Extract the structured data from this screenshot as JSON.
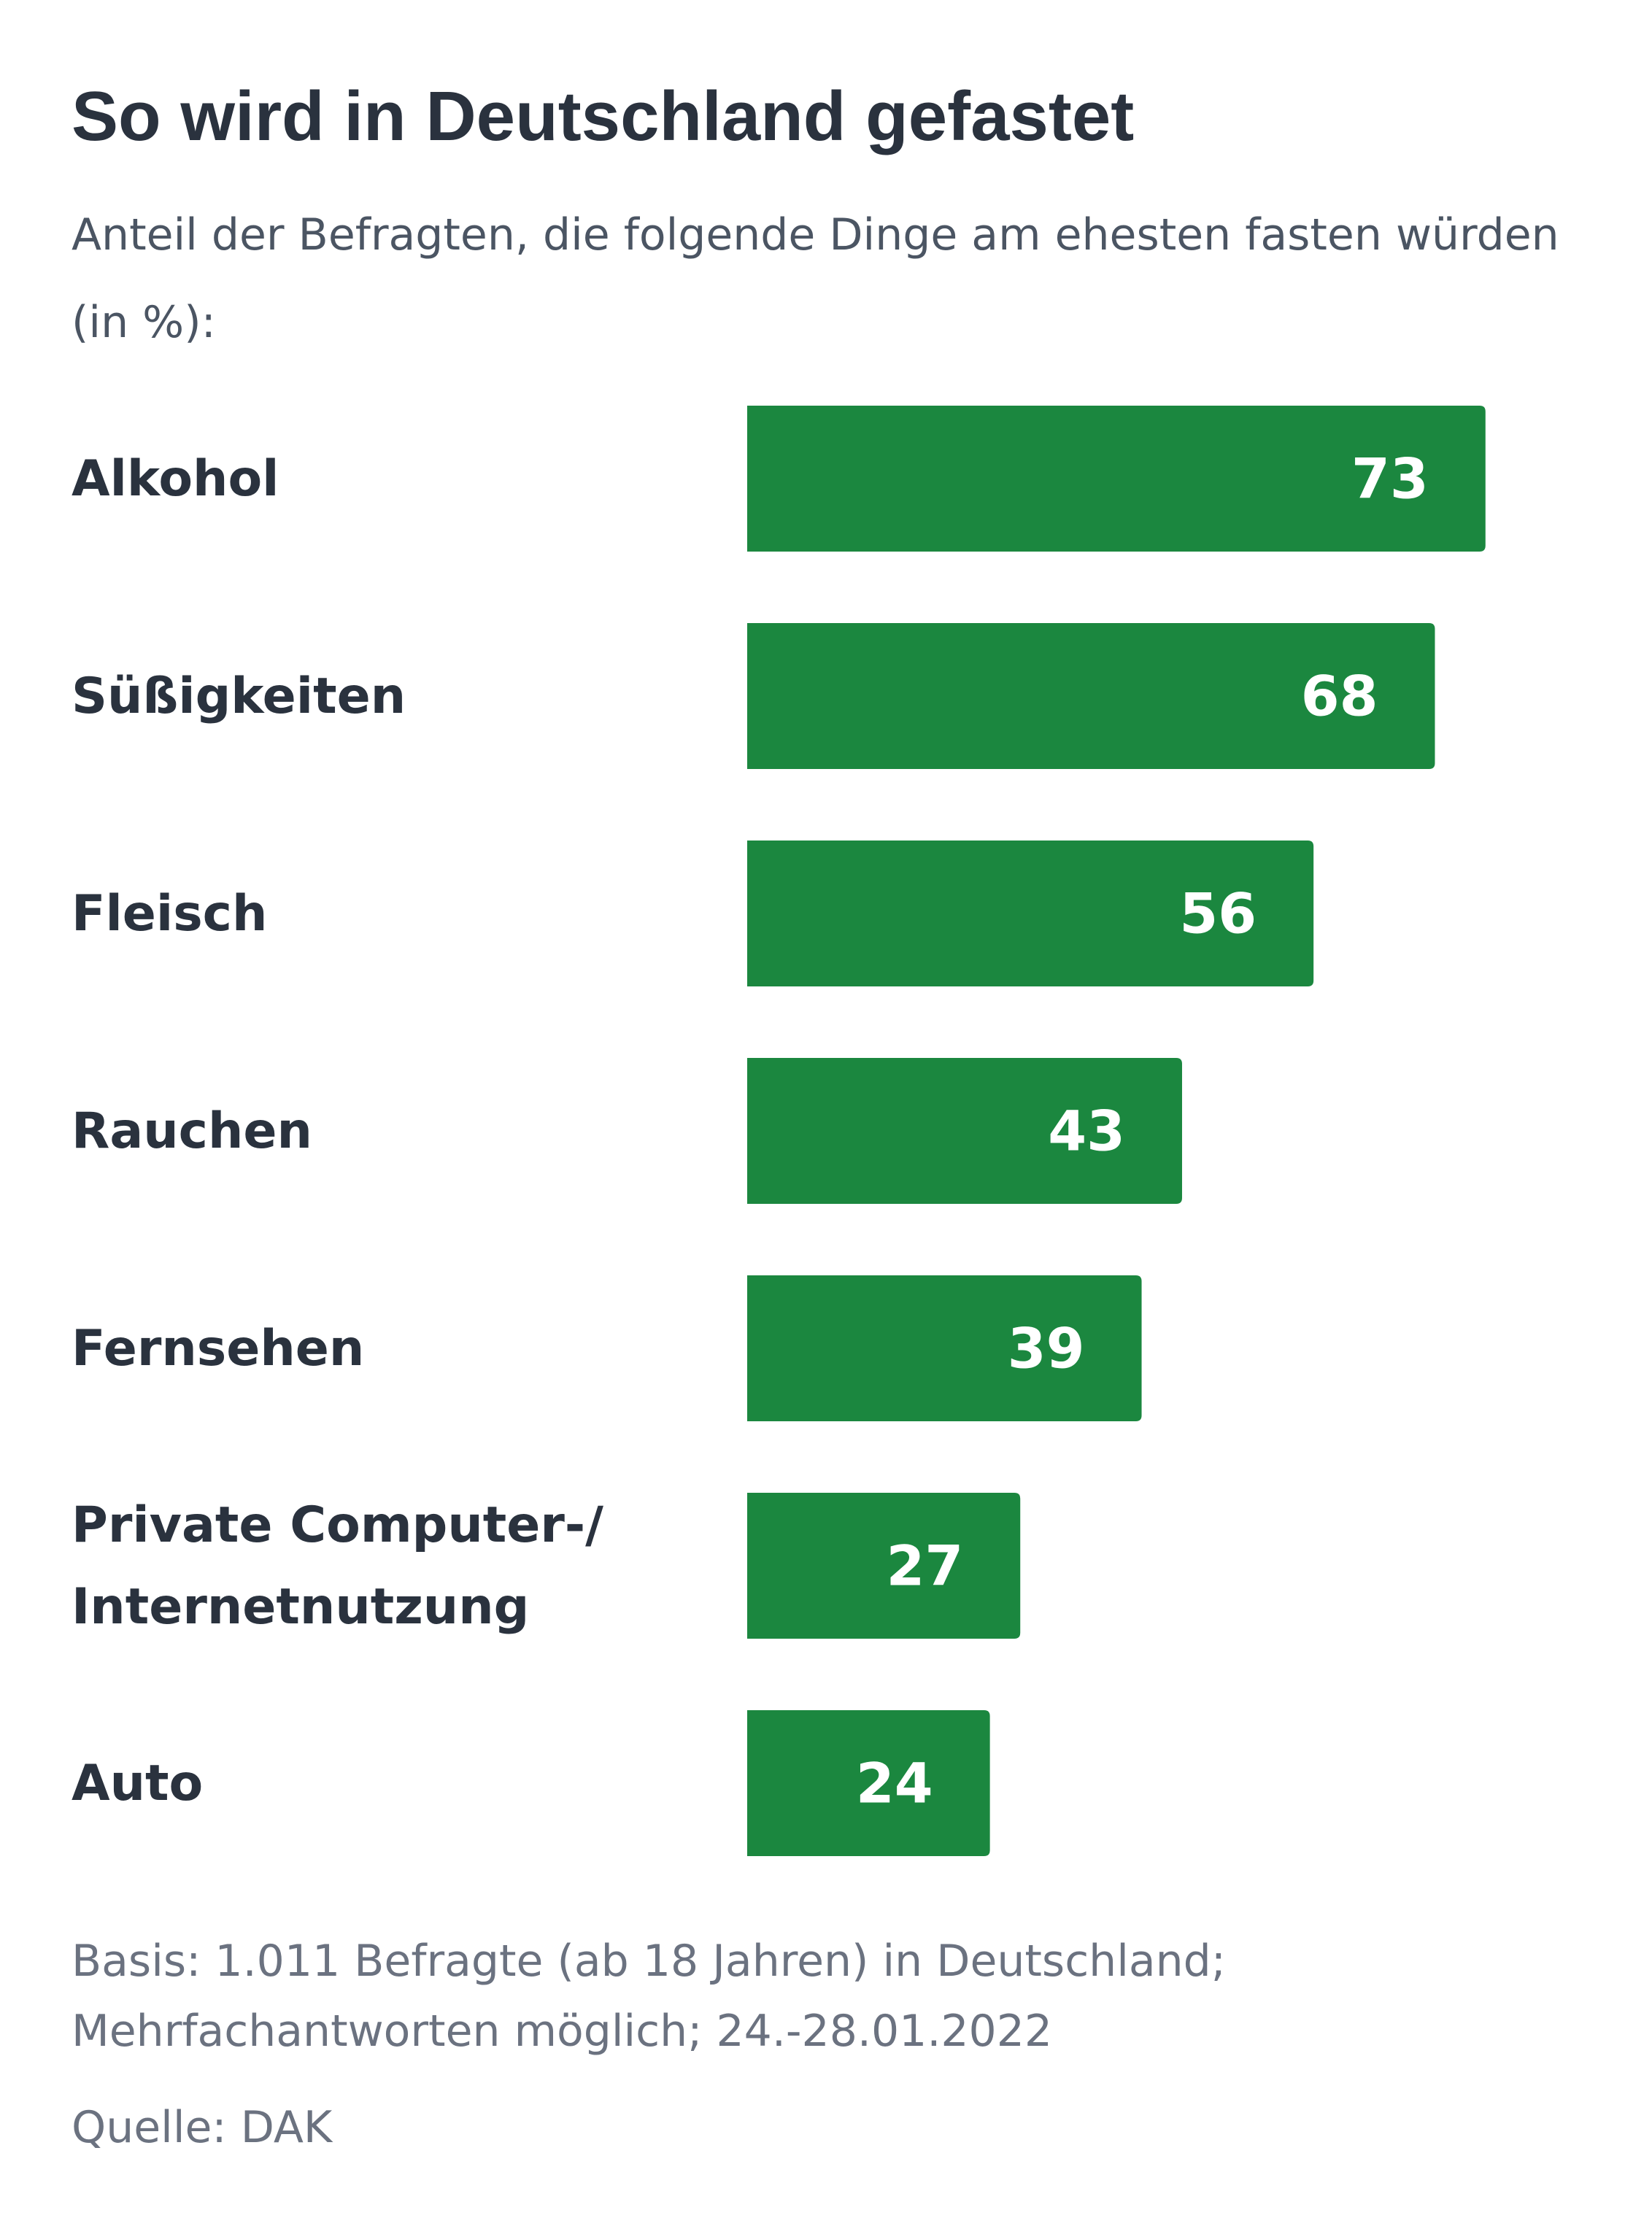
{
  "chart_data": {
    "type": "bar",
    "orientation": "horizontal",
    "title": "So wird in Deutschland gefastet",
    "subtitle": "Anteil der Befragten, die folgende Dinge am ehesten fasten würden (in %):",
    "categories": [
      "Alkohol",
      "Süßigkeiten",
      "Fleisch",
      "Rauchen",
      "Fernsehen",
      "Private Computer-/ Internetnutzung",
      "Auto"
    ],
    "values": [
      73,
      68,
      56,
      43,
      39,
      27,
      24
    ],
    "value_labels": [
      "73",
      "68",
      "56",
      "43",
      "39",
      "27",
      "24"
    ],
    "bar_color": "#1b873f",
    "value_label_color": "#ffffff",
    "xlim": [
      0,
      100
    ],
    "grid": false,
    "legend": "none"
  },
  "footnote": "Basis: 1.011 Befragte (ab 18 Jahren) in Deutschland; Mehrfachantworten möglich; 24.-28.01.2022",
  "source": "Quelle: DAK"
}
